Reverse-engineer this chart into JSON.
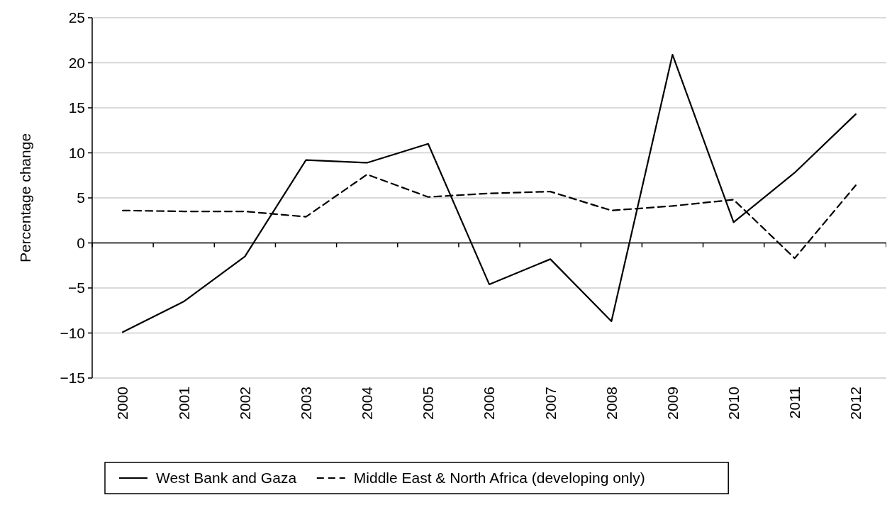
{
  "chart_data": {
    "type": "line",
    "ylabel": "Percentage change",
    "categories": [
      "2000",
      "2001",
      "2002",
      "2003",
      "2004",
      "2005",
      "2006",
      "2007",
      "2008",
      "2009",
      "2010",
      "2011",
      "2012"
    ],
    "series": [
      {
        "name": "West Bank and Gaza",
        "color": "#000000",
        "line_style": "solid",
        "values": [
          -9.9,
          -6.5,
          -1.5,
          9.2,
          8.9,
          11,
          -4.6,
          -1.8,
          -8.7,
          20.9,
          2.3,
          7.8,
          14.3
        ]
      },
      {
        "name": "Middle East & North Africa (developing only)",
        "color": "#000000",
        "line_style": "dashed",
        "values": [
          3.6,
          3.5,
          3.5,
          2.9,
          7.6,
          5.1,
          5.5,
          5.7,
          3.6,
          4.1,
          4.8,
          -1.7,
          6.4
        ]
      }
    ],
    "ylim": [
      -15,
      25
    ],
    "yticks": [
      -15,
      -10,
      -5,
      0,
      5,
      10,
      15,
      20,
      25
    ],
    "grid": "y",
    "legend": "bottom",
    "marker": "none"
  }
}
